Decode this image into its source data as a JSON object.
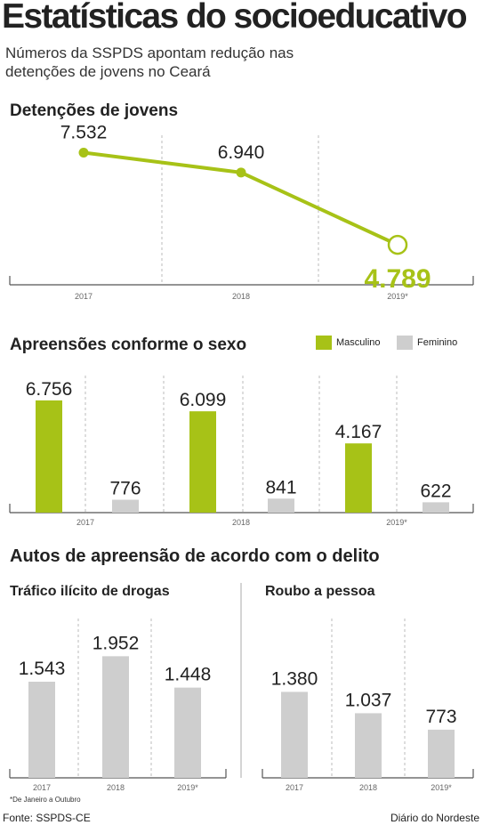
{
  "title": "Estatísticas do socioeducativo",
  "subtitle": "Números da SSPDS apontam redução nas detenções de jovens no Ceará",
  "colors": {
    "green": "#a7c217",
    "gray": "#cecece",
    "text": "#222222",
    "axis": "#555555"
  },
  "chart_data": [
    {
      "type": "line",
      "title": "Detenções de jovens",
      "categories": [
        "2017",
        "2018",
        "2019*"
      ],
      "values": [
        7532,
        6940,
        4789
      ],
      "labels": [
        "7.532",
        "6.940",
        "4.789"
      ],
      "ylim": [
        3600,
        8100
      ]
    },
    {
      "type": "bar",
      "title": "Apreensões conforme o sexo",
      "categories": [
        "2017",
        "2018",
        "2019*"
      ],
      "series": [
        {
          "name": "Masculino",
          "values": [
            6756,
            6099,
            4167
          ],
          "labels": [
            "6.756",
            "6.099",
            "4.167"
          ]
        },
        {
          "name": "Feminino",
          "values": [
            776,
            841,
            622
          ],
          "labels": [
            "776",
            "841",
            "622"
          ]
        }
      ],
      "ylim": [
        0,
        7500
      ],
      "legend": "top-right"
    },
    {
      "type": "bar",
      "title": "Tráfico ilícito de drogas",
      "group_title": "Autos de apreensão de acordo com o delito",
      "categories": [
        "2017",
        "2018",
        "2019*"
      ],
      "values": [
        1543,
        1952,
        1448
      ],
      "labels": [
        "1.543",
        "1.952",
        "1.448"
      ],
      "ylim": [
        0,
        2200
      ]
    },
    {
      "type": "bar",
      "title": "Roubo a pessoa",
      "categories": [
        "2017",
        "2018",
        "2019*"
      ],
      "values": [
        1380,
        1037,
        773
      ],
      "labels": [
        "1.380",
        "1.037",
        "773"
      ],
      "ylim": [
        0,
        2200
      ]
    }
  ],
  "footnote": "*De Janeiro a Outubro",
  "source": "Fonte: SSPDS-CE",
  "credit": "Diário do Nordeste"
}
